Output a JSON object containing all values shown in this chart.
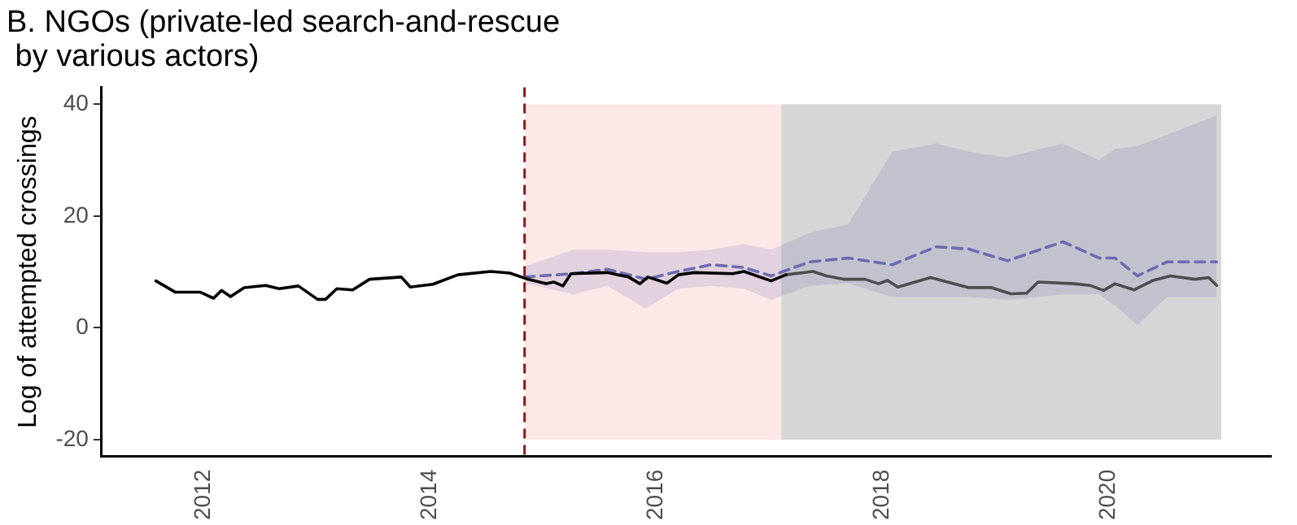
{
  "chart_data": {
    "type": "line",
    "title": "B. NGOs (private-led search-and-rescue\n by various actors)",
    "ylabel": "Log of attempted crossings",
    "xlim": [
      2011.1,
      2021.44
    ],
    "xticks": [
      2012,
      2014,
      2016,
      2018,
      2020
    ],
    "ylim": [
      -23,
      43
    ],
    "yticks": [
      -20,
      0,
      20,
      40
    ],
    "grid": false,
    "legend": false,
    "marker": "none",
    "ref_lines": [
      {
        "axis": "x",
        "value": 2014.84,
        "label": null,
        "color": "#8b1a1a",
        "line_style": "dashed"
      }
    ],
    "bands": [
      {
        "axis": "x",
        "from": 2014.84,
        "to": 2017.11,
        "label": null,
        "color": "#fde8e8"
      },
      {
        "axis": "x",
        "from": 2017.11,
        "to": 2021.0,
        "label": null,
        "color": "#d6d6d6"
      }
    ],
    "series": [
      {
        "color": "#000000",
        "line_style": "solid",
        "x": [
          2011.58,
          2011.75,
          2011.97,
          2012.09,
          2012.16,
          2012.24,
          2012.36,
          2012.55,
          2012.67,
          2012.84,
          2013.01,
          2013.08,
          2013.18,
          2013.32,
          2013.47,
          2013.75,
          2013.83,
          2014.03,
          2014.25,
          2014.54,
          2014.71,
          2014.87,
          2015.03,
          2015.1,
          2015.18,
          2015.25,
          2015.57,
          2015.76,
          2015.86,
          2015.93,
          2016.1,
          2016.2,
          2016.34,
          2016.68,
          2016.78,
          2017.02,
          2017.15
        ],
        "values": [
          8.4,
          6.4,
          6.4,
          5.3,
          6.7,
          5.6,
          7.2,
          7.6,
          7.0,
          7.5,
          5.1,
          5.1,
          7.0,
          6.8,
          8.7,
          9.1,
          7.3,
          7.8,
          9.5,
          10.1,
          9.8,
          8.7,
          7.9,
          8.2,
          7.5,
          9.7,
          9.9,
          9.1,
          7.9,
          9.1,
          8.0,
          9.5,
          9.9,
          9.7,
          10.1,
          8.4,
          9.5
        ]
      },
      {
        "color": "#4d4d4d",
        "line_style": "solid",
        "x": [
          2017.15,
          2017.39,
          2017.51,
          2017.66,
          2017.85,
          2017.97,
          2018.05,
          2018.14,
          2018.43,
          2018.77,
          2018.97,
          2019.14,
          2019.28,
          2019.38,
          2019.7,
          2019.84,
          2019.96,
          2020.06,
          2020.23,
          2020.4,
          2020.55,
          2020.77,
          2020.89,
          2020.96
        ],
        "values": [
          9.5,
          10.1,
          9.3,
          8.7,
          8.7,
          7.9,
          8.5,
          7.3,
          9.0,
          7.2,
          7.2,
          6.1,
          6.2,
          8.2,
          7.9,
          7.6,
          6.7,
          7.9,
          6.8,
          8.5,
          9.3,
          8.7,
          9.0,
          7.6
        ]
      },
      {
        "color": "#6b6bb0",
        "line_style": "dashed",
        "x": [
          2014.84,
          2015.27,
          2015.57,
          2015.91,
          2016.2,
          2016.49,
          2016.78,
          2017.02,
          2017.36,
          2017.7,
          2018.09,
          2018.48,
          2018.77,
          2019.11,
          2019.6,
          2019.92,
          2020.06,
          2020.26,
          2020.52,
          2020.96
        ],
        "values": [
          9.1,
          9.7,
          10.5,
          8.7,
          10.1,
          11.3,
          10.8,
          9.3,
          11.8,
          12.5,
          11.3,
          14.5,
          14.1,
          12.0,
          15.4,
          12.5,
          12.5,
          9.3,
          11.8,
          11.8
        ],
        "lower": [
          8,
          6,
          7.5,
          3.5,
          7,
          7.5,
          7,
          5,
          7.5,
          8,
          5.5,
          5.5,
          5.5,
          5,
          6,
          6,
          4,
          0.5,
          5.5,
          5.5
        ],
        "upper": [
          11,
          14,
          14,
          13.5,
          13.5,
          14,
          15,
          14,
          17,
          18.5,
          31.5,
          33,
          31.5,
          30.5,
          33,
          30,
          32,
          32.5,
          34.5,
          38
        ]
      }
    ]
  }
}
